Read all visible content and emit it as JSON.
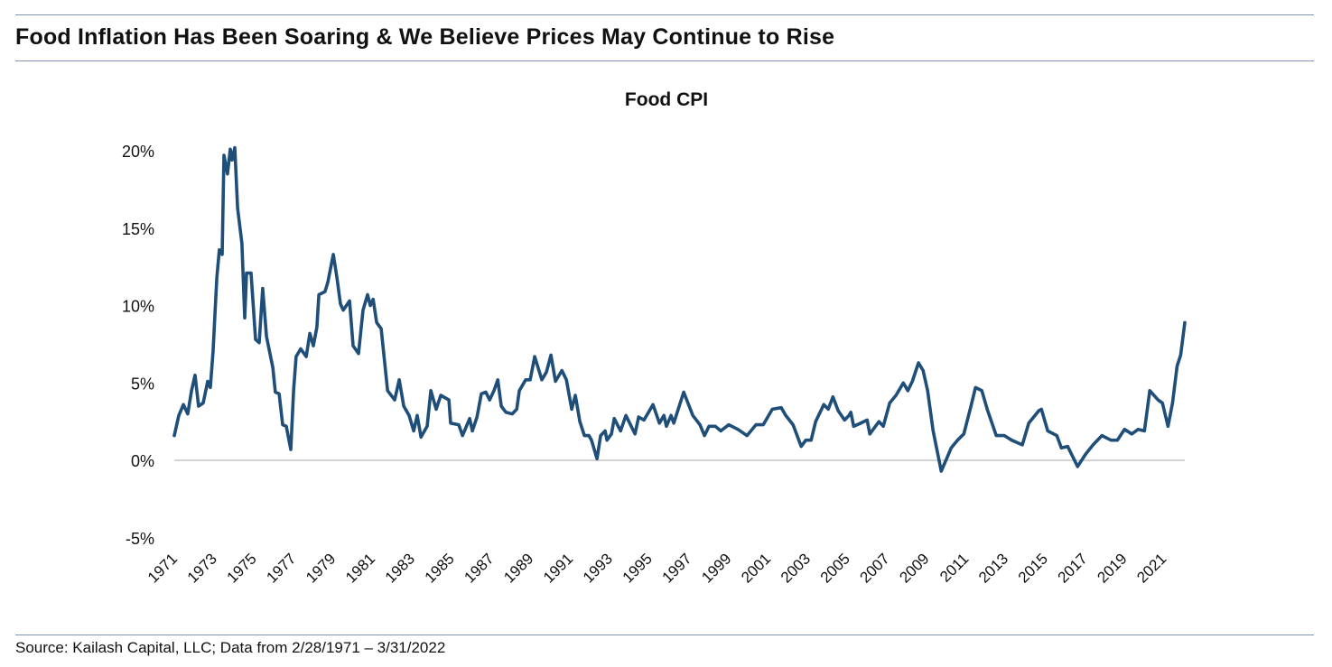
{
  "header": {
    "title": "Food Inflation Has Been Soaring & We Believe Prices May Continue to Rise"
  },
  "footer": {
    "source": "Source: Kailash Capital, LLC; Data from 2/28/1971 – 3/31/2022"
  },
  "chart_data": {
    "type": "line",
    "title": "Food CPI",
    "xlabel": "",
    "ylabel": "",
    "xlim": [
      1971.17,
      2022.25
    ],
    "ylim": [
      -5,
      20
    ],
    "y_ticks": [
      20,
      15,
      10,
      5,
      0,
      -5
    ],
    "y_tick_labels": [
      "20%",
      "15%",
      "10%",
      "5%",
      "0%",
      "-5%"
    ],
    "x_ticks": [
      1971,
      1973,
      1975,
      1977,
      1979,
      1981,
      1983,
      1985,
      1987,
      1989,
      1991,
      1993,
      1995,
      1997,
      1999,
      2001,
      2003,
      2005,
      2007,
      2009,
      2011,
      2013,
      2015,
      2017,
      2019,
      2021
    ],
    "x_tick_labels": [
      "1971",
      "1973",
      "1975",
      "1977",
      "1979",
      "1981",
      "1983",
      "1985",
      "1987",
      "1989",
      "1991",
      "1993",
      "1995",
      "1997",
      "1999",
      "2001",
      "2003",
      "2005",
      "2007",
      "2009",
      "2011",
      "2013",
      "2015",
      "2017",
      "2019",
      "2021"
    ],
    "grid": "zero line only",
    "line_color": "#1f4e79",
    "series": [
      {
        "x": [
          1971.17,
          1971.4,
          1971.63,
          1971.85,
          1972.04,
          1972.22,
          1972.4,
          1972.63,
          1972.86,
          1972.99,
          1973.13,
          1973.32,
          1973.45,
          1973.59,
          1973.68,
          1973.86,
          1974.0,
          1974.09,
          1974.23,
          1974.37,
          1974.59,
          1974.73,
          1974.82,
          1975.05,
          1975.28,
          1975.46,
          1975.64,
          1975.83,
          1976.15,
          1976.28,
          1976.47,
          1976.65,
          1976.83,
          1977.06,
          1977.2,
          1977.33,
          1977.56,
          1977.84,
          1978.02,
          1978.2,
          1978.38,
          1978.48,
          1978.79,
          1978.93,
          1979.21,
          1979.39,
          1979.57,
          1979.71,
          1980.03,
          1980.21,
          1980.48,
          1980.71,
          1980.94,
          1981.08,
          1981.22,
          1981.4,
          1981.63,
          1981.95,
          1982.31,
          1982.54,
          1982.77,
          1983.04,
          1983.27,
          1983.45,
          1983.64,
          1983.95,
          1984.14,
          1984.41,
          1984.64,
          1985.05,
          1985.14,
          1985.55,
          1985.74,
          1986.1,
          1986.24,
          1986.47,
          1986.69,
          1986.92,
          1987.11,
          1987.33,
          1987.52,
          1987.7,
          1987.93,
          1988.25,
          1988.48,
          1988.61,
          1988.93,
          1989.16,
          1989.39,
          1989.75,
          1989.98,
          1990.21,
          1990.44,
          1990.76,
          1990.99,
          1991.26,
          1991.44,
          1991.67,
          1991.9,
          1992.13,
          1992.26,
          1992.54,
          1992.72,
          1992.95,
          1993.04,
          1993.27,
          1993.41,
          1993.73,
          1994.0,
          1994.46,
          1994.64,
          1994.91,
          1995.37,
          1995.69,
          1995.92,
          1996.05,
          1996.28,
          1996.42,
          1996.92,
          1997.38,
          1997.74,
          1997.97,
          1998.2,
          1998.52,
          1998.79,
          1999.2,
          1999.66,
          2000.12,
          2000.57,
          2000.94,
          2001.4,
          2001.85,
          2002.08,
          2002.45,
          2002.86,
          2003.09,
          2003.36,
          2003.59,
          2004.0,
          2004.23,
          2004.46,
          2004.73,
          2005.05,
          2005.28,
          2005.37,
          2005.51,
          2005.87,
          2006.19,
          2006.33,
          2006.79,
          2007.01,
          2007.33,
          2007.65,
          2008.02,
          2008.25,
          2008.48,
          2008.79,
          2009.02,
          2009.25,
          2009.53,
          2009.94,
          2010.21,
          2010.44,
          2010.76,
          2011.08,
          2011.44,
          2011.67,
          2011.99,
          2012.26,
          2012.72,
          2013.13,
          2013.5,
          2014.04,
          2014.36,
          2014.87,
          2015.0,
          2015.32,
          2015.78,
          2016.01,
          2016.33,
          2016.83,
          2017.24,
          2017.61,
          2018.06,
          2018.52,
          2018.84,
          2019.2,
          2019.57,
          2019.89,
          2020.21,
          2020.48,
          2020.9,
          2021.12,
          2021.4,
          2021.63,
          2021.86,
          2022.04,
          2022.25
        ],
        "y": [
          1.6,
          2.9,
          3.6,
          3.0,
          4.5,
          5.5,
          3.5,
          3.7,
          5.1,
          4.7,
          7.0,
          11.8,
          13.6,
          13.3,
          19.7,
          18.5,
          20.1,
          19.4,
          20.2,
          16.3,
          14.0,
          9.2,
          12.1,
          12.1,
          7.8,
          7.6,
          11.1,
          8.0,
          6.0,
          4.4,
          4.3,
          2.3,
          2.2,
          0.7,
          4.5,
          6.7,
          7.2,
          6.7,
          8.2,
          7.4,
          8.6,
          10.7,
          10.9,
          11.5,
          13.3,
          11.8,
          10.1,
          9.7,
          10.3,
          7.4,
          6.9,
          9.7,
          10.7,
          10.0,
          10.4,
          8.9,
          8.5,
          4.5,
          3.9,
          5.2,
          3.5,
          2.9,
          1.9,
          2.9,
          1.5,
          2.2,
          4.5,
          3.3,
          4.2,
          3.9,
          2.4,
          2.3,
          1.6,
          2.7,
          1.9,
          2.8,
          4.3,
          4.4,
          3.9,
          4.5,
          5.2,
          3.5,
          3.1,
          3.0,
          3.3,
          4.5,
          5.2,
          5.2,
          6.7,
          5.2,
          5.7,
          6.8,
          5.1,
          5.8,
          5.2,
          3.3,
          4.2,
          2.5,
          1.6,
          1.6,
          1.3,
          0.1,
          1.6,
          1.9,
          1.3,
          1.7,
          2.7,
          1.9,
          2.9,
          1.7,
          2.8,
          2.6,
          3.6,
          2.4,
          2.9,
          2.2,
          2.9,
          2.4,
          4.4,
          2.9,
          2.3,
          1.6,
          2.2,
          2.2,
          1.9,
          2.3,
          2.0,
          1.6,
          2.3,
          2.3,
          3.3,
          3.4,
          2.9,
          2.3,
          0.9,
          1.3,
          1.3,
          2.5,
          3.6,
          3.3,
          4.1,
          3.2,
          2.6,
          2.9,
          3.1,
          2.2,
          2.4,
          2.6,
          1.7,
          2.5,
          2.2,
          3.7,
          4.2,
          5.0,
          4.5,
          5.1,
          6.3,
          5.8,
          4.5,
          1.9,
          -0.7,
          0.1,
          0.8,
          1.3,
          1.7,
          3.5,
          4.7,
          4.5,
          3.3,
          1.6,
          1.6,
          1.3,
          1.0,
          2.4,
          3.2,
          3.3,
          1.9,
          1.6,
          0.8,
          0.9,
          -0.4,
          0.4,
          1.0,
          1.6,
          1.3,
          1.3,
          2.0,
          1.7,
          2.0,
          1.9,
          4.5,
          3.9,
          3.7,
          2.2,
          3.7,
          6.1,
          6.8,
          8.9
        ]
      }
    ]
  }
}
